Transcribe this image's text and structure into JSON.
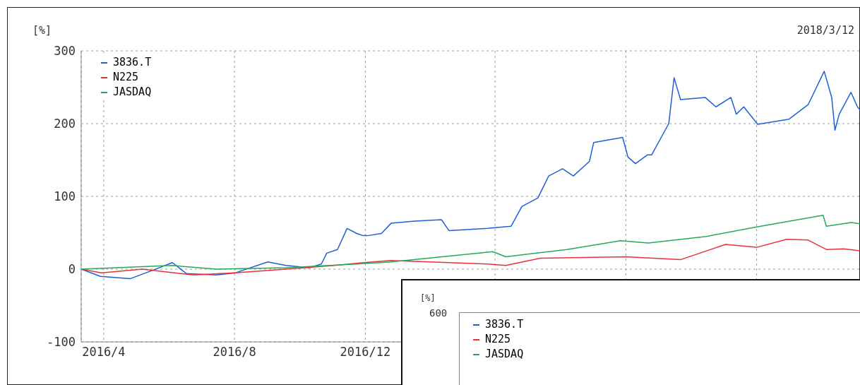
{
  "chart_data": [
    {
      "type": "line",
      "ylabel": "[%]",
      "annotations": [
        "2018/3/12"
      ],
      "xlim": [
        "2016-03-11",
        "2018-03-12"
      ],
      "xticks": [
        {
          "value": "2016-04-01",
          "label": "2016/4"
        },
        {
          "value": "2016-08-01",
          "label": "2016/8"
        },
        {
          "value": "2016-12-01",
          "label": "2016/12"
        },
        {
          "value": "2017-04-01",
          "label": null
        },
        {
          "value": "2017-08-01",
          "label": null
        },
        {
          "value": "2017-12-01",
          "label": null
        }
      ],
      "ylim": [
        -100,
        300
      ],
      "yticks": [
        -100,
        0,
        100,
        200,
        300
      ],
      "grid": true,
      "legend": "top left",
      "marker": "none",
      "line_style": "solid",
      "series": [
        {
          "name": "3836.T",
          "color": "#1f5fd6",
          "x": [
            "2016-03-11",
            "2016-03-29",
            "2016-04-26",
            "2016-05-14",
            "2016-06-04",
            "2016-06-17",
            "2016-07-15",
            "2016-08-02",
            "2016-09-01",
            "2016-09-18",
            "2016-10-10",
            "2016-10-21",
            "2016-10-26",
            "2016-11-05",
            "2016-11-14",
            "2016-11-23",
            "2016-11-29",
            "2016-12-03",
            "2016-12-16",
            "2016-12-25",
            "2017-01-16",
            "2017-02-10",
            "2017-02-17",
            "2017-03-25",
            "2017-04-16",
            "2017-04-26",
            "2017-05-11",
            "2017-05-21",
            "2017-06-03",
            "2017-06-13",
            "2017-06-28",
            "2017-07-02",
            "2017-07-29",
            "2017-08-03",
            "2017-08-10",
            "2017-08-21",
            "2017-08-25",
            "2017-09-10",
            "2017-09-15",
            "2017-09-21",
            "2017-10-14",
            "2017-10-24",
            "2017-11-07",
            "2017-11-12",
            "2017-11-19",
            "2017-12-02",
            "2017-12-31",
            "2018-01-18",
            "2018-02-02",
            "2018-02-09",
            "2018-02-12",
            "2018-02-16",
            "2018-02-27",
            "2018-03-05",
            "2018-03-09"
          ],
          "values": [
            0,
            -10,
            -13,
            -3,
            9,
            -6,
            -8,
            -5,
            10,
            5,
            2,
            7,
            22,
            27,
            56,
            49,
            46,
            46,
            49,
            63,
            66,
            68,
            53,
            56,
            59,
            86,
            98,
            128,
            138,
            128,
            148,
            174,
            181,
            154,
            145,
            157,
            157,
            200,
            263,
            233,
            236,
            223,
            236,
            213,
            223,
            199,
            206,
            226,
            272,
            236,
            191,
            213,
            243,
            223,
            216
          ]
        },
        {
          "name": "N225",
          "color": "#e8303a",
          "x": [
            "2016-03-11",
            "2016-03-30",
            "2016-05-07",
            "2016-06-24",
            "2016-08-01",
            "2016-09-18",
            "2016-11-02",
            "2016-11-30",
            "2016-12-25",
            "2017-03-25",
            "2017-04-11",
            "2017-05-13",
            "2017-08-01",
            "2017-09-21",
            "2017-11-02",
            "2017-12-01",
            "2017-12-29",
            "2018-01-18",
            "2018-02-04",
            "2018-02-20",
            "2018-03-09"
          ],
          "values": [
            0,
            -5,
            0,
            -8,
            -5,
            0,
            5,
            9,
            12,
            7,
            5,
            15,
            17,
            13,
            34,
            30,
            41,
            40,
            27,
            28,
            25
          ]
        },
        {
          "name": "JASDAQ",
          "color": "#22aa5a",
          "x": [
            "2016-03-11",
            "2016-06-04",
            "2016-07-15",
            "2016-09-18",
            "2016-11-23",
            "2016-12-25",
            "2017-03-30",
            "2017-04-11",
            "2017-06-07",
            "2017-07-27",
            "2017-08-22",
            "2017-10-15",
            "2017-12-01",
            "2018-02-01",
            "2018-02-04",
            "2018-02-27",
            "2018-03-09"
          ],
          "values": [
            0,
            5,
            0,
            2,
            7,
            10,
            24,
            17,
            27,
            39,
            36,
            45,
            58,
            74,
            59,
            64,
            62
          ]
        }
      ]
    },
    {
      "type": "other",
      "ylabel": "[%]",
      "annotations": [
        "600"
      ],
      "legend": "top left",
      "series": [
        {
          "name": "3836.T",
          "color": "#1f5fd6"
        },
        {
          "name": "N225",
          "color": "#e8303a"
        },
        {
          "name": "JASDAQ",
          "color": "#22aa5a"
        }
      ]
    }
  ]
}
